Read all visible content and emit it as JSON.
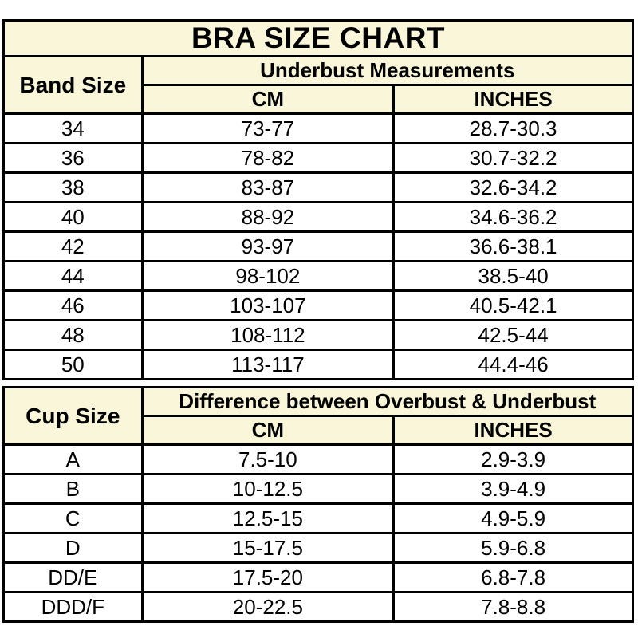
{
  "title": "BRA SIZE CHART",
  "colors": {
    "header_bg": "#FAF6D9",
    "row_bg": "#FFFFFF",
    "border": "#000000",
    "text": "#000000"
  },
  "band_table": {
    "corner_header": "Band Size",
    "group_header": "Underbust Measurements",
    "col_headers": [
      "CM",
      "INCHES"
    ],
    "rows": [
      {
        "size": "34",
        "cm": "73-77",
        "inches": "28.7-30.3"
      },
      {
        "size": "36",
        "cm": "78-82",
        "inches": "30.7-32.2"
      },
      {
        "size": "38",
        "cm": "83-87",
        "inches": "32.6-34.2"
      },
      {
        "size": "40",
        "cm": "88-92",
        "inches": "34.6-36.2"
      },
      {
        "size": "42",
        "cm": "93-97",
        "inches": "36.6-38.1"
      },
      {
        "size": "44",
        "cm": "98-102",
        "inches": "38.5-40"
      },
      {
        "size": "46",
        "cm": "103-107",
        "inches": "40.5-42.1"
      },
      {
        "size": "48",
        "cm": "108-112",
        "inches": "42.5-44"
      },
      {
        "size": "50",
        "cm": "113-117",
        "inches": "44.4-46"
      }
    ]
  },
  "cup_table": {
    "corner_header": "Cup Size",
    "group_header": "Difference between Overbust & Underbust",
    "col_headers": [
      "CM",
      "INCHES"
    ],
    "rows": [
      {
        "size": "A",
        "cm": "7.5-10",
        "inches": "2.9-3.9"
      },
      {
        "size": "B",
        "cm": "10-12.5",
        "inches": "3.9-4.9"
      },
      {
        "size": "C",
        "cm": "12.5-15",
        "inches": "4.9-5.9"
      },
      {
        "size": "D",
        "cm": "15-17.5",
        "inches": "5.9-6.8"
      },
      {
        "size": "DD/E",
        "cm": "17.5-20",
        "inches": "6.8-7.8"
      },
      {
        "size": "DDD/F",
        "cm": "20-22.5",
        "inches": "7.8-8.8"
      }
    ]
  }
}
